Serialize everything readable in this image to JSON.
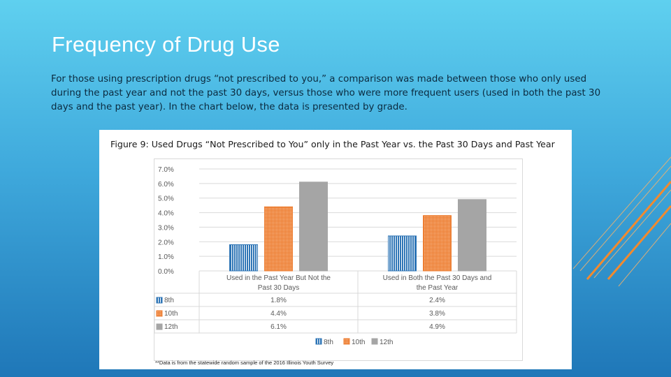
{
  "slide": {
    "title": "Frequency of Drug Use",
    "body": "For those using prescription drugs “not prescribed to you,” a comparison was made between those who only used during the past year and not the past 30 days, versus those who were more frequent users (used in both the past 30 days and the past year). In the chart below, the data is presented by grade."
  },
  "figure": {
    "title": "Figure 9: Used Drugs “Not Prescribed to You” only in the Past Year vs. the Past 30 Days and Past Year",
    "footnote": "**Data is from the statewide random sample of the 2016 Illinois Youth Survey"
  },
  "chart_data": {
    "type": "bar",
    "title": "Figure 9: Used Drugs “Not Prescribed to You” only in the Past Year vs. the Past 30 Days and Past Year",
    "categories": [
      "Used in the Past Year But Not the Past 30 Days",
      "Used in Both the Past 30 Days and the Past Year"
    ],
    "series": [
      {
        "name": "8th",
        "values": [
          1.8,
          2.4
        ],
        "labels": [
          "1.8%",
          "2.4%"
        ],
        "color": "#2e75b6"
      },
      {
        "name": "10th",
        "values": [
          4.4,
          3.8
        ],
        "labels": [
          "4.4%",
          "3.8%"
        ],
        "color": "#ed7d31"
      },
      {
        "name": "12th",
        "values": [
          6.1,
          4.9
        ],
        "labels": [
          "6.1%",
          "4.9%"
        ],
        "color": "#a5a5a5"
      }
    ],
    "yticks": [
      "0.0%",
      "1.0%",
      "2.0%",
      "3.0%",
      "4.0%",
      "5.0%",
      "6.0%",
      "7.0%"
    ],
    "ylim": [
      0,
      7
    ],
    "xlabel": "",
    "ylabel": "",
    "grid": true,
    "legend": "bottom",
    "data_table": true
  }
}
